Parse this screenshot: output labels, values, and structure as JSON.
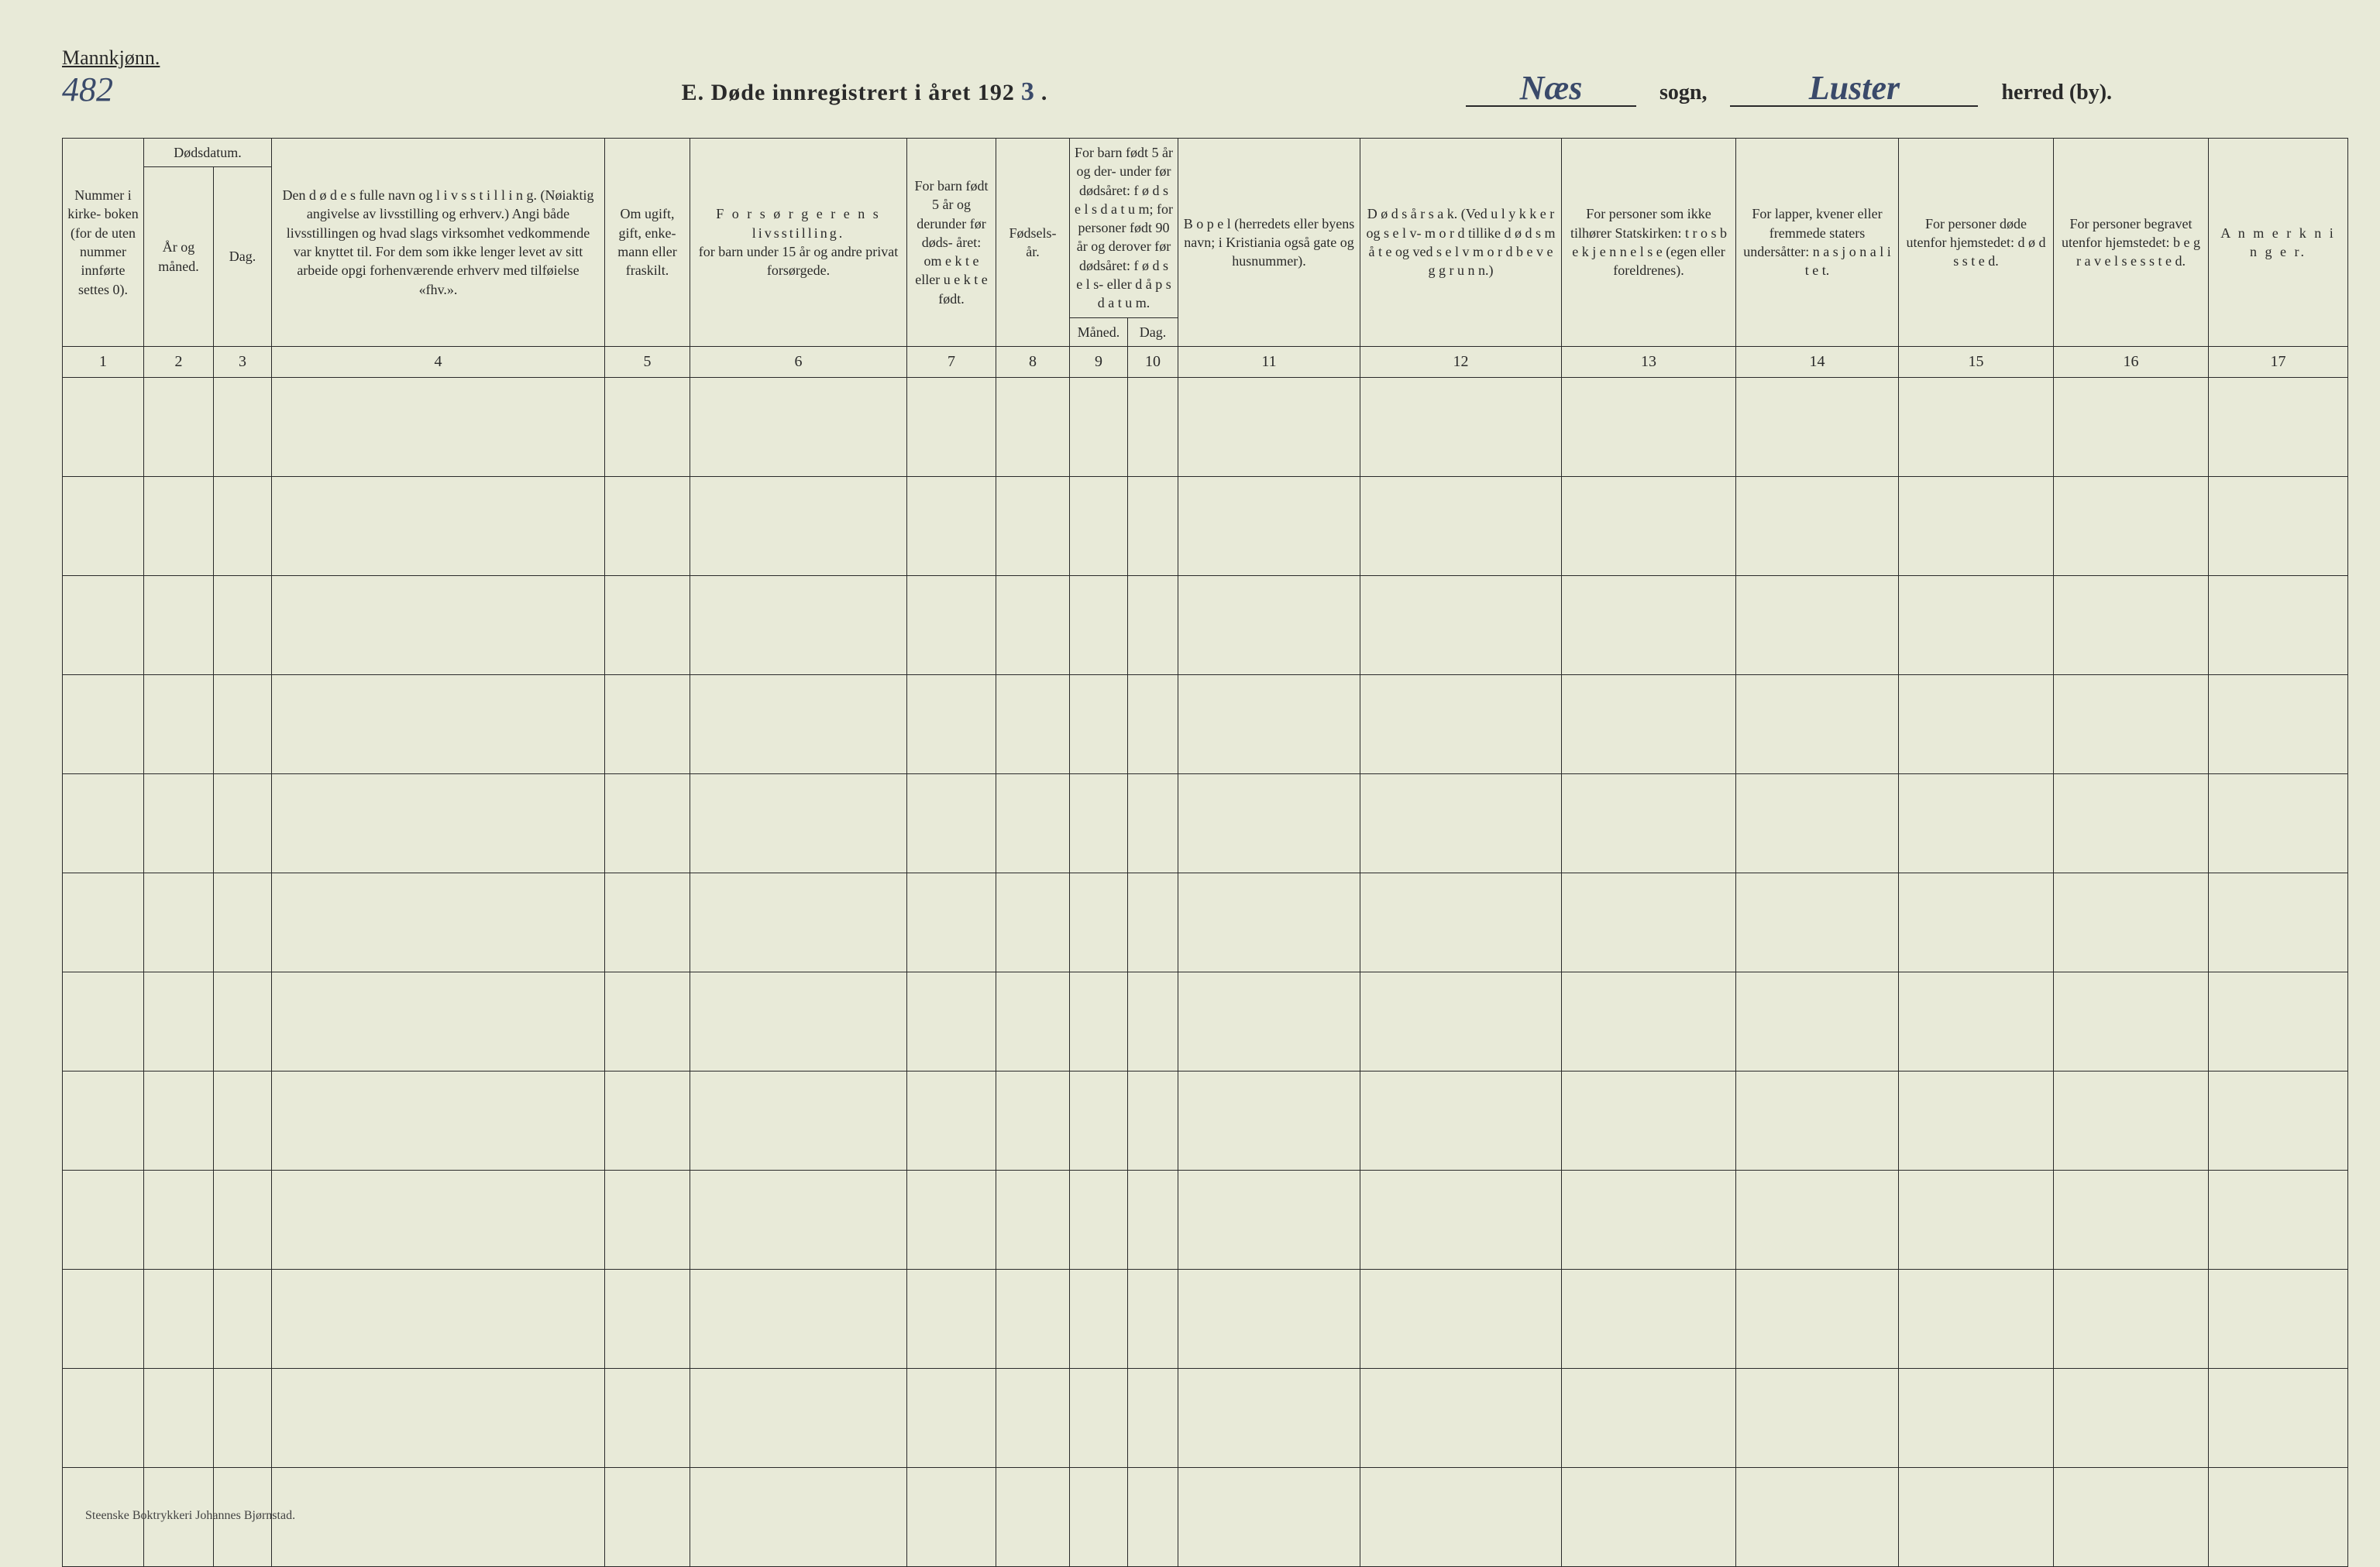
{
  "header": {
    "gender_label": "Mannkjønn.",
    "page_number": "482",
    "title_prefix": "E.  Døde innregistrert i året 192",
    "year_suffix_hand": "3",
    "title_period": " .",
    "parish_hand": "Næs",
    "parish_label": "sogn,",
    "district_hand": "Luster",
    "district_label": "herred (by)."
  },
  "columns": {
    "c1": "Nummer i kirke- boken (for de uten nummer innførte settes 0).",
    "c2_top": "Dødsdatum.",
    "c2a": "År og måned.",
    "c2b": "Dag.",
    "c4": "Den d ø d e s fulle navn og l i v s s t i l l i n g. (Nøiaktig angivelse av livsstilling og erhverv.) Angi både livsstillingen og hvad slags virksomhet vedkommende var knyttet til. For dem som ikke lenger levet av sitt arbeide opgi forhenværende erhverv med tilføielse «fhv.».",
    "c5": "Om ugift, gift, enke- mann eller fraskilt.",
    "c6_top": "F o r s ø r g e r e n s livsstilling.",
    "c6_sub": "for barn under 15 år og andre privat forsørgede.",
    "c7": "For barn født 5 år og derunder før døds- året: om e k t e eller u e k t e født.",
    "c8": "Fødsels- år.",
    "c9_10_top": "For barn født 5 år og der- under før dødsåret: f ø d s e l s d a t u m; for personer født 90 år og derover før dødsåret: f ø d s e l s- eller d å p s d a t u m.",
    "c9": "Måned.",
    "c10": "Dag.",
    "c11": "B o p e l (herredets eller byens navn; i Kristiania også gate og husnummer).",
    "c12": "D ø d s å r s a k. (Ved u l y k k e r og s e l v- m o r d tillike d ø d s m å t e og ved s e l v m o r d b e v e g g r u n n.)",
    "c13": "For personer som ikke tilhører Statskirken: t r o s b e k j e n n e l s e (egen eller foreldrenes).",
    "c14": "For lapper, kvener eller fremmede staters undersåtter: n a s j o n a l i t e t.",
    "c15": "For personer døde utenfor hjemstedet: d ø d s s t e d.",
    "c16": "For personer begravet utenfor hjemstedet: b e g r a v e l s e s s t e d.",
    "c17": "A n m e r k n i n g e r."
  },
  "column_numbers": [
    "1",
    "2",
    "3",
    "4",
    "5",
    "6",
    "7",
    "8",
    "9",
    "10",
    "11",
    "12",
    "13",
    "14",
    "15",
    "16",
    "17"
  ],
  "data_row_count": 12,
  "footer": "Steenske Boktrykkeri Johannes Bjørnstad."
}
